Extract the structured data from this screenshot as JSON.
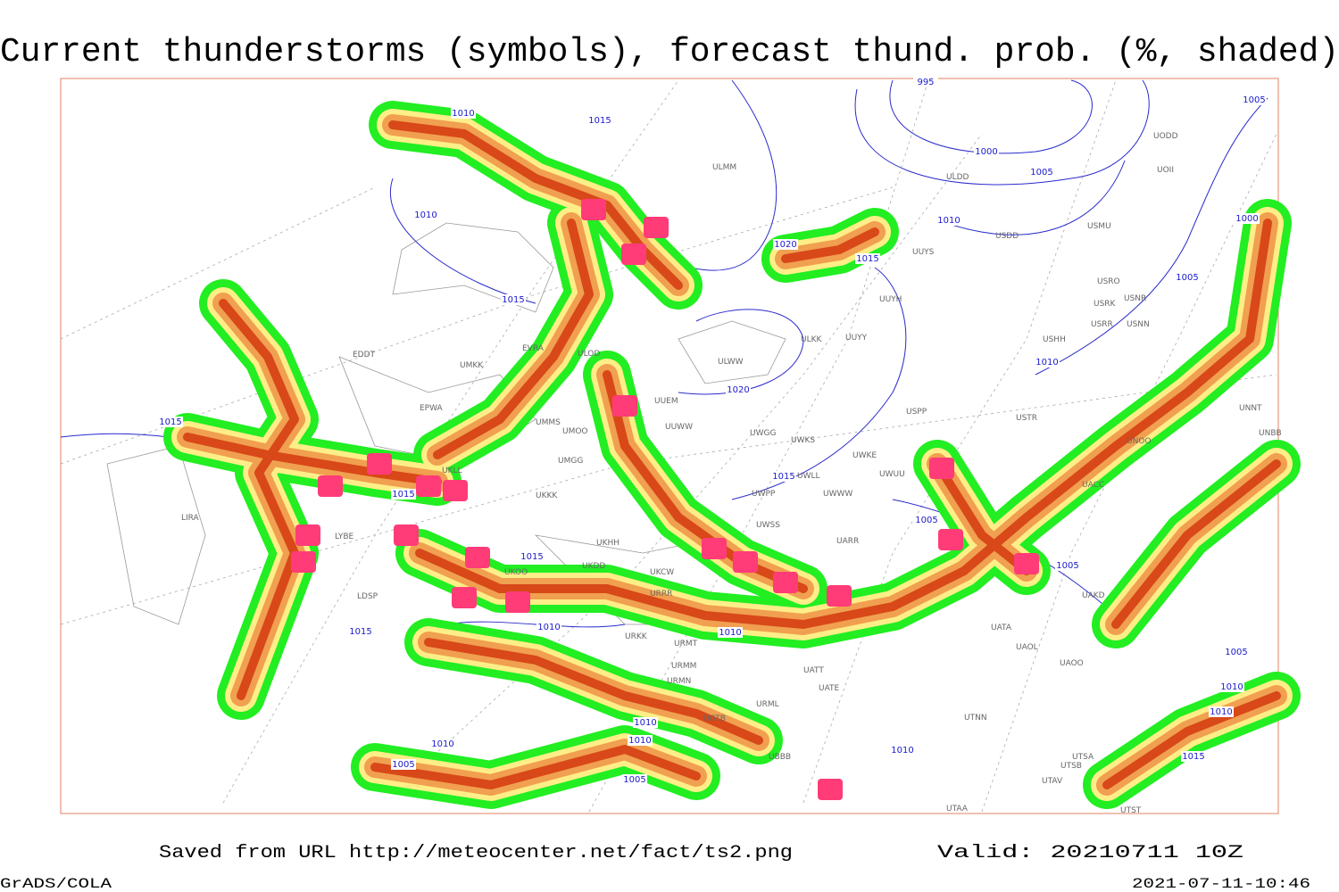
{
  "header": {
    "title": "Current thunderstorms (symbols), forecast thund. prob. (%, shaded)"
  },
  "footer": {
    "source": "Saved from URL http://meteocenter.net/fact/ts2.png",
    "valid": "Valid: 20210711 10Z",
    "software": "GrADS/COLA",
    "timestamp": "2021-07-11-10:46"
  },
  "isobar_labels": [
    "995",
    "1010",
    "1015",
    "1000",
    "1005",
    "1005",
    "1010",
    "1010",
    "1000",
    "1020",
    "1015",
    "1005",
    "1015",
    "1010",
    "1020",
    "1015",
    "1015",
    "1015",
    "1005",
    "1015",
    "1005",
    "1010",
    "1010",
    "1015",
    "1005",
    "1010",
    "1010",
    "1010",
    "1010",
    "1010",
    "1010",
    "1005",
    "1005",
    "1015"
  ],
  "stations": [
    "EDDT",
    "EPWA",
    "LIRA",
    "LYBE",
    "LDSP",
    "UMKK",
    "EVRA",
    "ULOD",
    "UMMS",
    "UMOO",
    "UMGG",
    "UKKK",
    "UKLL",
    "UKHH",
    "UKDD",
    "UKOO",
    "UKCW",
    "URRR",
    "URKK",
    "URMT",
    "URMM",
    "URMN",
    "URML",
    "UATE",
    "UATT",
    "UUEM",
    "UUWW",
    "UWGG",
    "UWKS",
    "UWKE",
    "UWWW",
    "UWLL",
    "UWPP",
    "UWSS",
    "UARR",
    "UWUU",
    "UUYS",
    "UUYH",
    "ULKK",
    "UUYY",
    "ULWW",
    "USPP",
    "USTR",
    "UNOO",
    "UNNT",
    "UNBB",
    "UACC",
    "UAKD",
    "UATA",
    "UAOL",
    "UAOO",
    "UTNN",
    "UTSA",
    "UTSB",
    "UTAV",
    "UTAA",
    "UTST",
    "USRR",
    "USNN",
    "USRK",
    "USNR",
    "USRO",
    "USHH",
    "USMU",
    "USDD",
    "ULDD",
    "ULMM",
    "UODD",
    "UOII",
    "UBBB",
    "UGTB"
  ]
}
